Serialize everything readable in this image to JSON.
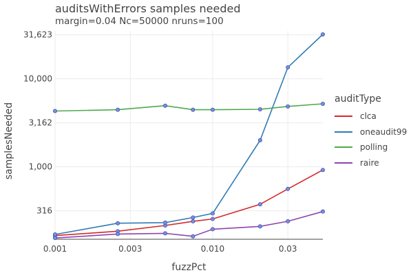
{
  "chart_data": {
    "type": "line",
    "title": "auditsWithErrors samples needed",
    "subtitle": "margin=0.04 Nc=50000 nruns=100",
    "xlabel": "fuzzPct",
    "ylabel": "samplesNeeded",
    "xscale": "log",
    "yscale": "log",
    "xlim": [
      0.001,
      0.05
    ],
    "ylim": [
      150,
      35000
    ],
    "x_ticks": [
      {
        "value": 0.001,
        "label": "0.001"
      },
      {
        "value": 0.003,
        "label": "0.003"
      },
      {
        "value": 0.01,
        "label": "0.010"
      },
      {
        "value": 0.03,
        "label": "0.03"
      }
    ],
    "y_ticks": [
      {
        "value": 316,
        "label": "316"
      },
      {
        "value": 1000,
        "label": "1,000"
      },
      {
        "value": 3162,
        "label": "3,162"
      },
      {
        "value": 10000,
        "label": "10,000"
      },
      {
        "value": 31623,
        "label": "31,623"
      }
    ],
    "grid": true,
    "legend_title": "auditType",
    "legend_position": "right",
    "x": [
      0.001,
      0.0025,
      0.005,
      0.0075,
      0.01,
      0.02,
      0.03,
      0.05
    ],
    "series": [
      {
        "name": "clca",
        "color": "#d62728",
        "values": [
          165,
          185,
          215,
          240,
          255,
          375,
          560,
          920
        ]
      },
      {
        "name": "oneaudit99",
        "color": "#2f7bb5",
        "values": [
          170,
          228,
          232,
          265,
          295,
          2000,
          13500,
          32000
        ]
      },
      {
        "name": "polling",
        "color": "#4ea84b",
        "values": [
          4300,
          4450,
          4950,
          4450,
          4450,
          4500,
          4850,
          5200
        ]
      },
      {
        "name": "raire",
        "color": "#8e44ad",
        "values": [
          155,
          172,
          175,
          162,
          195,
          210,
          240,
          310
        ]
      }
    ]
  }
}
